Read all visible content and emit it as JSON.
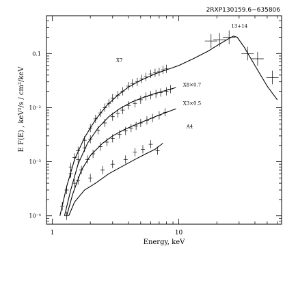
{
  "chart_data": {
    "type": "scatter",
    "title": "2RXP130159.6−635806",
    "xlabel": "Energy, keV",
    "ylabel": "E F(E) , keV²/s / cm²/keV",
    "xscale": "log",
    "yscale": "log",
    "xlim": [
      0.9,
      65
    ],
    "ylim": [
      7e-05,
      0.5
    ],
    "x_tick_labels": [
      {
        "v": 1,
        "t": "1"
      },
      {
        "v": 10,
        "t": "10"
      }
    ],
    "y_tick_labels": [
      {
        "v": 0.1,
        "t": "0.1"
      },
      {
        "v": 0.01,
        "t": "10⁻²"
      },
      {
        "v": 0.001,
        "t": "10⁻³"
      },
      {
        "v": 0.0001,
        "t": "10⁻⁴"
      }
    ],
    "grid": false,
    "series": [
      {
        "name": "X7",
        "label_at": [
          3.2,
          0.07
        ],
        "model": [
          [
            1.15,
            0.0001
          ],
          [
            1.3,
            0.00035
          ],
          [
            1.5,
            0.0011
          ],
          [
            1.8,
            0.0028
          ],
          [
            2.2,
            0.006
          ],
          [
            2.7,
            0.011
          ],
          [
            3.3,
            0.017
          ],
          [
            4,
            0.024
          ],
          [
            5,
            0.032
          ],
          [
            6.5,
            0.042
          ],
          [
            8,
            0.05
          ],
          [
            10,
            0.06
          ],
          [
            13,
            0.08
          ],
          [
            17,
            0.11
          ],
          [
            20,
            0.14
          ],
          [
            24,
            0.18
          ],
          [
            27,
            0.21
          ],
          [
            29,
            0.2
          ],
          [
            33,
            0.13
          ],
          [
            40,
            0.06
          ],
          [
            50,
            0.025
          ],
          [
            60,
            0.014
          ]
        ],
        "points": [
          [
            1.2,
            0.00015
          ],
          [
            1.3,
            0.0003
          ],
          [
            1.4,
            0.0008
          ],
          [
            1.5,
            0.0012
          ],
          [
            1.6,
            0.0016
          ],
          [
            1.8,
            0.0025
          ],
          [
            2.0,
            0.0042
          ],
          [
            2.2,
            0.0062
          ],
          [
            2.4,
            0.008
          ],
          [
            2.6,
            0.01
          ],
          [
            2.8,
            0.012
          ],
          [
            3.0,
            0.015
          ],
          [
            3.3,
            0.017
          ],
          [
            3.6,
            0.02
          ],
          [
            4.0,
            0.025
          ],
          [
            4.3,
            0.028
          ],
          [
            4.7,
            0.03
          ],
          [
            5.1,
            0.034
          ],
          [
            5.5,
            0.037
          ],
          [
            6.0,
            0.042
          ],
          [
            6.5,
            0.044
          ],
          [
            7.0,
            0.046
          ],
          [
            7.5,
            0.05
          ],
          [
            8.0,
            0.052
          ]
        ]
      },
      {
        "name": "13+14",
        "label_at": [
          26,
          0.3
        ],
        "points": [
          [
            18,
            0.17
          ],
          [
            21,
            0.18
          ],
          [
            25,
            0.2
          ],
          [
            35,
            0.1
          ],
          [
            42,
            0.08
          ],
          [
            55,
            0.036
          ]
        ]
      },
      {
        "name": "X8×0.7",
        "label_at": [
          10.8,
          0.0245
        ],
        "model": [
          [
            1.25,
            0.0001
          ],
          [
            1.4,
            0.0003
          ],
          [
            1.6,
            0.0009
          ],
          [
            1.9,
            0.0022
          ],
          [
            2.3,
            0.0042
          ],
          [
            2.8,
            0.0068
          ],
          [
            3.4,
            0.0095
          ],
          [
            4.2,
            0.0125
          ],
          [
            5,
            0.0148
          ],
          [
            6,
            0.0172
          ],
          [
            7,
            0.0192
          ],
          [
            8,
            0.021
          ],
          [
            9.5,
            0.0235
          ]
        ],
        "points": [
          [
            1.4,
            0.0006
          ],
          [
            1.6,
            0.0011
          ],
          [
            1.8,
            0.0018
          ],
          [
            2.0,
            0.0026
          ],
          [
            2.3,
            0.0038
          ],
          [
            2.6,
            0.0052
          ],
          [
            3.0,
            0.0068
          ],
          [
            3.3,
            0.0078
          ],
          [
            3.6,
            0.009
          ],
          [
            4.0,
            0.011
          ],
          [
            4.5,
            0.012
          ],
          [
            5.0,
            0.014
          ],
          [
            5.5,
            0.016
          ],
          [
            6.0,
            0.017
          ],
          [
            6.6,
            0.018
          ],
          [
            7.2,
            0.019
          ],
          [
            8.0,
            0.02
          ],
          [
            8.6,
            0.022
          ]
        ]
      },
      {
        "name": "X3×0.5",
        "label_at": [
          10.8,
          0.0112
        ],
        "model": [
          [
            1.3,
            0.0001
          ],
          [
            1.45,
            0.00025
          ],
          [
            1.7,
            0.0007
          ],
          [
            2,
            0.0013
          ],
          [
            2.5,
            0.0022
          ],
          [
            3,
            0.003
          ],
          [
            3.7,
            0.0039
          ],
          [
            4.5,
            0.0048
          ],
          [
            5.5,
            0.0058
          ],
          [
            6.5,
            0.0068
          ],
          [
            8,
            0.0082
          ],
          [
            9.5,
            0.0095
          ]
        ],
        "points": [
          [
            1.5,
            0.0004
          ],
          [
            1.7,
            0.0007
          ],
          [
            1.9,
            0.0011
          ],
          [
            2.1,
            0.0014
          ],
          [
            2.4,
            0.0019
          ],
          [
            2.7,
            0.0023
          ],
          [
            3.0,
            0.0027
          ],
          [
            3.4,
            0.0032
          ],
          [
            3.8,
            0.0037
          ],
          [
            4.2,
            0.0042
          ],
          [
            4.6,
            0.0046
          ],
          [
            5.0,
            0.0052
          ],
          [
            5.6,
            0.0058
          ],
          [
            6.2,
            0.0064
          ],
          [
            7.0,
            0.0072
          ],
          [
            7.8,
            0.0082
          ]
        ]
      },
      {
        "name": "A4",
        "label_at": [
          11.5,
          0.0042
        ],
        "model": [
          [
            1.35,
            0.0001
          ],
          [
            1.5,
            0.00018
          ],
          [
            1.8,
            0.0003
          ],
          [
            2.2,
            0.0004
          ],
          [
            2.8,
            0.0006
          ],
          [
            3.5,
            0.0008
          ],
          [
            4.5,
            0.0011
          ],
          [
            5.5,
            0.0014
          ],
          [
            6.5,
            0.0017
          ],
          [
            7.5,
            0.0022
          ]
        ],
        "points": [
          [
            1.3,
            0.0001
          ],
          [
            1.4,
            0.0006
          ],
          [
            1.6,
            0.00045
          ],
          [
            2.0,
            0.0005
          ],
          [
            2.5,
            0.0007
          ],
          [
            3.0,
            0.0009
          ],
          [
            3.8,
            0.0011
          ],
          [
            4.5,
            0.0015
          ],
          [
            5.2,
            0.0017
          ],
          [
            6.0,
            0.0021
          ],
          [
            6.8,
            0.0016
          ]
        ]
      }
    ]
  }
}
